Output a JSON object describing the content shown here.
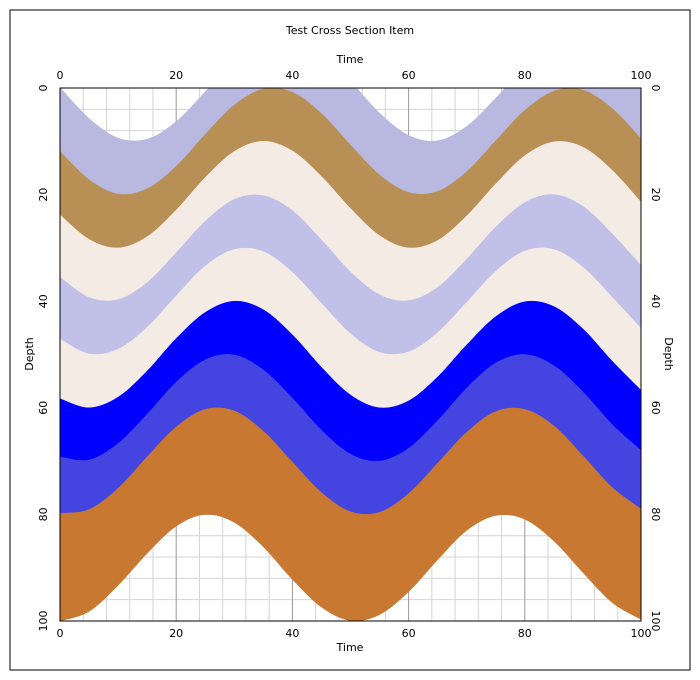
{
  "chart_data": {
    "type": "layers",
    "title": "Test Cross Section Item",
    "xlabel": "Time",
    "ylabel": "Depth",
    "xlim": [
      0,
      100
    ],
    "ylim": [
      100,
      0
    ],
    "xticks": [
      0,
      20,
      40,
      60,
      80,
      100
    ],
    "yticks": [
      0,
      20,
      40,
      60,
      80,
      100
    ],
    "xminorticks": [
      4,
      8,
      12,
      16,
      24,
      28,
      32,
      36,
      44,
      48,
      52,
      56,
      64,
      68,
      72,
      76,
      84,
      88,
      92,
      96
    ],
    "yminorticks": [
      4,
      8,
      12,
      16,
      24,
      28,
      32,
      36,
      44,
      48,
      52,
      56,
      64,
      68,
      72,
      76,
      84,
      88,
      92,
      96
    ],
    "grid": true,
    "x": [
      0,
      5,
      10,
      15,
      20,
      25,
      30,
      35,
      40,
      45,
      50,
      55,
      60,
      65,
      70,
      75,
      80,
      85,
      90,
      95,
      100
    ],
    "boundaries": [
      [
        -0.1,
        5.7,
        9.4,
        9.6,
        6.3,
        0.7,
        -5.2,
        -9.2,
        -9.8,
        -6.8,
        -1.3,
        4.7,
        8.9,
        9.9,
        7.2,
        1.9,
        -4.1,
        -8.6,
        -10.0,
        -7.6,
        -2.5
      ],
      [
        11.9,
        17.2,
        19.9,
        18.9,
        14.7,
        8.7,
        3.2,
        0.2,
        0.8,
        4.8,
        10.7,
        16.3,
        19.6,
        19.4,
        15.7,
        9.9,
        4.2,
        0.6,
        0.4,
        3.8,
        9.5
      ],
      [
        23.8,
        28.4,
        30.0,
        27.9,
        22.9,
        16.8,
        11.9,
        10.0,
        11.8,
        16.6,
        22.6,
        27.7,
        30.0,
        28.6,
        24.0,
        18.0,
        12.7,
        10.1,
        11.1,
        15.4,
        21.4
      ],
      [
        35.5,
        39.3,
        39.7,
        36.5,
        30.9,
        25.0,
        20.9,
        20.2,
        23.0,
        28.5,
        34.5,
        38.8,
        39.9,
        37.4,
        32.1,
        26.1,
        21.5,
        20.0,
        22.2,
        27.3,
        33.3
      ],
      [
        47.1,
        49.9,
        49.0,
        44.9,
        39.0,
        33.4,
        30.3,
        30.7,
        34.6,
        40.4,
        46.1,
        49.6,
        49.5,
        45.9,
        40.2,
        34.4,
        30.6,
        30.3,
        33.6,
        39.2,
        45.1
      ],
      [
        58.3,
        60.0,
        58.0,
        53.1,
        47.0,
        42.1,
        40.0,
        41.6,
        46.3,
        52.4,
        57.6,
        60.0,
        58.7,
        54.2,
        48.2,
        42.9,
        40.1,
        41.0,
        45.2,
        51.2,
        56.7
      ],
      [
        69.2,
        69.8,
        66.7,
        61.2,
        55.2,
        51.0,
        50.1,
        52.9,
        58.2,
        64.2,
        68.7,
        70.0,
        67.6,
        62.4,
        56.3,
        51.6,
        50.0,
        52.1,
        57.0,
        63.1,
        68.0
      ],
      [
        79.8,
        79.1,
        75.1,
        69.2,
        63.6,
        60.3,
        60.6,
        64.4,
        70.2,
        75.9,
        79.5,
        79.6,
        76.1,
        70.4,
        64.6,
        60.7,
        60.3,
        63.4,
        69.0,
        74.9,
        79.0
      ],
      [
        100,
        98.2,
        93.3,
        87.3,
        82.2,
        80.0,
        81.5,
        86.1,
        92.2,
        97.4,
        99.9,
        98.8,
        94.5,
        88.5,
        83.0,
        80.2,
        80.9,
        85.0,
        90.9,
        96.5,
        99.7
      ]
    ],
    "colors": [
      "#b8b8e0",
      "#b89055",
      "#f5ebe5",
      "#c0c0e8",
      "#f5ebe5",
      "#0000ff",
      "#4444e0",
      "#c87830"
    ]
  }
}
